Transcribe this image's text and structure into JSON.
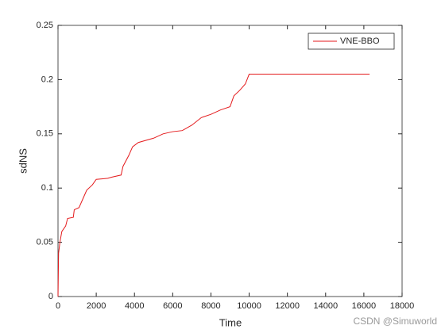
{
  "chart_data": {
    "type": "line",
    "xlabel": "Time",
    "ylabel": "sdNS",
    "x": [
      0,
      30,
      100,
      200,
      400,
      500,
      800,
      850,
      1100,
      1300,
      1500,
      1800,
      2000,
      2600,
      2800,
      3300,
      3400,
      3700,
      3900,
      4200,
      5000,
      5500,
      6000,
      6500,
      7000,
      7500,
      8000,
      8500,
      9000,
      9200,
      9500,
      9800,
      10000,
      16300
    ],
    "series": [
      {
        "name": "VNE-BBO",
        "color": "#e41a1c",
        "values": [
          0,
          0.04,
          0.05,
          0.06,
          0.065,
          0.072,
          0.073,
          0.08,
          0.082,
          0.09,
          0.098,
          0.103,
          0.108,
          0.109,
          0.11,
          0.112,
          0.12,
          0.13,
          0.138,
          0.142,
          0.146,
          0.15,
          0.152,
          0.153,
          0.158,
          0.165,
          0.168,
          0.172,
          0.175,
          0.185,
          0.19,
          0.196,
          0.205,
          0.205
        ]
      }
    ],
    "xlim": [
      0,
      18000
    ],
    "xticks": [
      0,
      2000,
      4000,
      6000,
      8000,
      10000,
      12000,
      14000,
      16000,
      18000
    ],
    "ylim": [
      0,
      0.25
    ],
    "yticks": [
      0,
      0.05,
      0.1,
      0.15,
      0.2,
      0.25
    ],
    "legend": "upper right",
    "watermark": "CSDN @Simuworld"
  }
}
